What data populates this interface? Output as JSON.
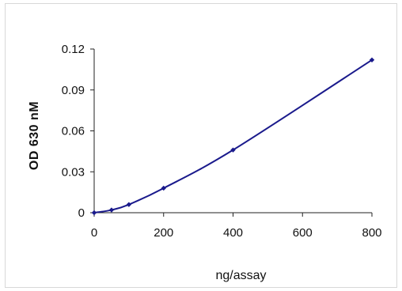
{
  "chart_data": {
    "type": "line",
    "title": "",
    "xlabel": "ng/assay",
    "ylabel": "OD 630 nM",
    "xlim": [
      0,
      800
    ],
    "ylim": [
      0,
      0.12
    ],
    "x_ticks": [
      "0",
      "200",
      "400",
      "600",
      "800"
    ],
    "y_ticks": [
      "0",
      "0.03",
      "0.06",
      "0.09",
      "0.12"
    ],
    "x_tick_values": [
      0,
      200,
      400,
      600,
      800
    ],
    "y_tick_values": [
      0,
      0.03,
      0.06,
      0.09,
      0.12
    ],
    "grid": false,
    "legend": "none",
    "series": [
      {
        "color": "#1a1a8c",
        "x": [
          0,
          50,
          100,
          200,
          400,
          800
        ],
        "y": [
          0,
          0.002,
          0.006,
          0.018,
          0.046,
          0.112
        ]
      }
    ]
  }
}
